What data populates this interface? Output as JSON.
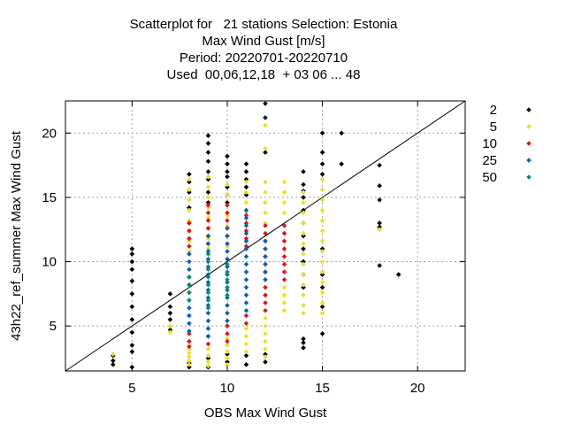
{
  "chart_data": {
    "type": "scatter",
    "title_lines": [
      "Scatterplot for   21 stations Selection: Estonia",
      "Max Wind Gust [m/s]",
      "Period: 20220701-20220710",
      "Used  00,06,12,18  + 03 06 ... 48"
    ],
    "xlabel": "OBS Max Wind Gust",
    "ylabel": "43h22_ref_summer Max Wind Gust",
    "xlim": [
      1.5,
      22.5
    ],
    "ylim": [
      1.5,
      22.5
    ],
    "xticks": [
      5,
      10,
      15,
      20
    ],
    "yticks": [
      5,
      10,
      15,
      20
    ],
    "grid": true,
    "legend_position": "right",
    "diagonal": true,
    "series": [
      {
        "name": "2",
        "color": "#000000",
        "points": [
          [
            4,
            2.7
          ],
          [
            4,
            2.3
          ],
          [
            4,
            2.0
          ],
          [
            5,
            11.0
          ],
          [
            5,
            10.6
          ],
          [
            5,
            10.0
          ],
          [
            5,
            9.4
          ],
          [
            5,
            8.5
          ],
          [
            5,
            7.5
          ],
          [
            5,
            6.5
          ],
          [
            5,
            5.5
          ],
          [
            5,
            4.5
          ],
          [
            5,
            3.5
          ],
          [
            5,
            3.0
          ],
          [
            5,
            1.8
          ],
          [
            7,
            7.5
          ],
          [
            7,
            6.5
          ],
          [
            7,
            6.0
          ],
          [
            7,
            5.5
          ],
          [
            7,
            4.7
          ],
          [
            8,
            16.8
          ],
          [
            8,
            16.2
          ],
          [
            8,
            15.4
          ],
          [
            8,
            14.2
          ],
          [
            8,
            13.0
          ],
          [
            8,
            2.1
          ],
          [
            8,
            1.8
          ],
          [
            9,
            19.8
          ],
          [
            9,
            19.2
          ],
          [
            9,
            18.5
          ],
          [
            9,
            17.8
          ],
          [
            9,
            17.0
          ],
          [
            9,
            16.4
          ],
          [
            9,
            15.4
          ],
          [
            9,
            14.6
          ],
          [
            9,
            2.5
          ],
          [
            9,
            1.8
          ],
          [
            10,
            18.2
          ],
          [
            10,
            17.6
          ],
          [
            10,
            17.0
          ],
          [
            10,
            16.6
          ],
          [
            10,
            15.8
          ],
          [
            10,
            15.2
          ],
          [
            10,
            14.6
          ],
          [
            10,
            2.8
          ],
          [
            10,
            2.2
          ],
          [
            11,
            17.6
          ],
          [
            11,
            17.0
          ],
          [
            11,
            16.4
          ],
          [
            11,
            15.8
          ],
          [
            11,
            15.2
          ],
          [
            11,
            2.7
          ],
          [
            11,
            2.0
          ],
          [
            12,
            22.3
          ],
          [
            12,
            21.2
          ],
          [
            12,
            18.5
          ],
          [
            12,
            2.8
          ],
          [
            12,
            2.2
          ],
          [
            14,
            17.0
          ],
          [
            14,
            16.0
          ],
          [
            14,
            15.5
          ],
          [
            14,
            15.0
          ],
          [
            14,
            14.0
          ],
          [
            14,
            13.0
          ],
          [
            14,
            12.0
          ],
          [
            14,
            11.0
          ],
          [
            14,
            10.0
          ],
          [
            14,
            9.0
          ],
          [
            14,
            8.0
          ],
          [
            14,
            4.0
          ],
          [
            14,
            3.7
          ],
          [
            14,
            3.3
          ],
          [
            15,
            20.0
          ],
          [
            15,
            18.5
          ],
          [
            15,
            17.6
          ],
          [
            15,
            16.8
          ],
          [
            15,
            11.0
          ],
          [
            15,
            9.0
          ],
          [
            15,
            8.0
          ],
          [
            15,
            6.5
          ],
          [
            15,
            4.4
          ],
          [
            16,
            20.0
          ],
          [
            16,
            17.6
          ],
          [
            18,
            17.5
          ],
          [
            18,
            15.9
          ],
          [
            18,
            14.8
          ],
          [
            18,
            13.0
          ],
          [
            18,
            12.7
          ],
          [
            18,
            9.7
          ],
          [
            19,
            9.0
          ]
        ]
      },
      {
        "name": "5",
        "color": "#e8e030",
        "points": [
          [
            4,
            2.8
          ],
          [
            7,
            5.0
          ],
          [
            7,
            4.5
          ],
          [
            8,
            16.4
          ],
          [
            8,
            15.6
          ],
          [
            8,
            14.8
          ],
          [
            8,
            14.0
          ],
          [
            8,
            13.2
          ],
          [
            8,
            12.4
          ],
          [
            8,
            11.6
          ],
          [
            8,
            10.8
          ],
          [
            8,
            3.2
          ],
          [
            8,
            2.9
          ],
          [
            8,
            2.6
          ],
          [
            8,
            2.3
          ],
          [
            8,
            2.0
          ],
          [
            9,
            16.6
          ],
          [
            9,
            15.8
          ],
          [
            9,
            15.0
          ],
          [
            9,
            14.2
          ],
          [
            9,
            13.4
          ],
          [
            9,
            12.6
          ],
          [
            9,
            11.8
          ],
          [
            9,
            11.0
          ],
          [
            9,
            3.2
          ],
          [
            9,
            2.7
          ],
          [
            9,
            2.2
          ],
          [
            9,
            1.9
          ],
          [
            10,
            16.0
          ],
          [
            10,
            15.2
          ],
          [
            10,
            14.4
          ],
          [
            10,
            13.6
          ],
          [
            10,
            12.8
          ],
          [
            10,
            12.0
          ],
          [
            10,
            11.2
          ],
          [
            10,
            4.0
          ],
          [
            10,
            3.5
          ],
          [
            10,
            3.0
          ],
          [
            10,
            2.5
          ],
          [
            10,
            2.0
          ],
          [
            11,
            16.2
          ],
          [
            11,
            15.4
          ],
          [
            11,
            14.6
          ],
          [
            11,
            13.8
          ],
          [
            11,
            13.0
          ],
          [
            11,
            12.2
          ],
          [
            11,
            4.8
          ],
          [
            11,
            4.2
          ],
          [
            11,
            3.6
          ],
          [
            11,
            3.0
          ],
          [
            12,
            20.6
          ],
          [
            12,
            18.8
          ],
          [
            12,
            16.2
          ],
          [
            12,
            15.4
          ],
          [
            12,
            14.6
          ],
          [
            12,
            13.8
          ],
          [
            12,
            13.0
          ],
          [
            12,
            5.6
          ],
          [
            12,
            5.0
          ],
          [
            12,
            4.4
          ],
          [
            12,
            3.8
          ],
          [
            12,
            3.2
          ],
          [
            12,
            2.6
          ],
          [
            13,
            16.2
          ],
          [
            13,
            15.4
          ],
          [
            13,
            14.6
          ],
          [
            13,
            13.8
          ],
          [
            13,
            8.0
          ],
          [
            13,
            7.4
          ],
          [
            13,
            6.8
          ],
          [
            13,
            6.2
          ],
          [
            14,
            15.4
          ],
          [
            14,
            14.6
          ],
          [
            14,
            13.8
          ],
          [
            14,
            13.0
          ],
          [
            14,
            12.2
          ],
          [
            14,
            11.4
          ],
          [
            14,
            10.6
          ],
          [
            14,
            9.8
          ],
          [
            14,
            9.0
          ],
          [
            14,
            8.2
          ],
          [
            14,
            7.4
          ],
          [
            14,
            6.6
          ],
          [
            14,
            6.0
          ],
          [
            15,
            16.4
          ],
          [
            15,
            15.6
          ],
          [
            15,
            14.8
          ],
          [
            15,
            14.0
          ],
          [
            15,
            13.2
          ],
          [
            15,
            12.4
          ],
          [
            15,
            11.6
          ],
          [
            15,
            10.8
          ],
          [
            15,
            10.0
          ],
          [
            15,
            9.2
          ],
          [
            15,
            8.4
          ],
          [
            15,
            7.6
          ],
          [
            15,
            6.8
          ],
          [
            15,
            6.0
          ],
          [
            18,
            12.5
          ]
        ]
      },
      {
        "name": "10",
        "color": "#d81818",
        "points": [
          [
            8,
            13.0
          ],
          [
            8,
            12.4
          ],
          [
            8,
            11.8
          ],
          [
            8,
            11.2
          ],
          [
            8,
            10.6
          ],
          [
            8,
            4.4
          ],
          [
            8,
            3.8
          ],
          [
            8,
            3.4
          ],
          [
            9,
            14.4
          ],
          [
            9,
            13.8
          ],
          [
            9,
            13.2
          ],
          [
            9,
            12.6
          ],
          [
            9,
            12.0
          ],
          [
            9,
            11.4
          ],
          [
            9,
            4.2
          ],
          [
            9,
            3.6
          ],
          [
            10,
            14.4
          ],
          [
            10,
            13.8
          ],
          [
            10,
            13.2
          ],
          [
            10,
            12.6
          ],
          [
            10,
            12.0
          ],
          [
            10,
            5.0
          ],
          [
            10,
            4.4
          ],
          [
            10,
            3.8
          ],
          [
            11,
            13.6
          ],
          [
            11,
            13.0
          ],
          [
            11,
            12.4
          ],
          [
            11,
            11.8
          ],
          [
            11,
            11.2
          ],
          [
            11,
            5.8
          ],
          [
            11,
            5.2
          ],
          [
            12,
            12.8
          ],
          [
            12,
            12.2
          ],
          [
            12,
            11.6
          ],
          [
            12,
            11.0
          ],
          [
            12,
            10.4
          ],
          [
            12,
            9.8
          ],
          [
            12,
            9.2
          ],
          [
            12,
            8.6
          ],
          [
            12,
            8.0
          ],
          [
            12,
            7.4
          ],
          [
            12,
            6.8
          ],
          [
            12,
            6.2
          ],
          [
            13,
            12.8
          ],
          [
            13,
            12.2
          ],
          [
            13,
            11.6
          ],
          [
            13,
            11.0
          ],
          [
            13,
            10.4
          ],
          [
            13,
            9.8
          ],
          [
            13,
            9.2
          ],
          [
            13,
            8.6
          ]
        ]
      },
      {
        "name": "25",
        "color": "#1060b0",
        "points": [
          [
            8,
            10.6
          ],
          [
            8,
            10.0
          ],
          [
            8,
            9.4
          ],
          [
            8,
            8.8
          ],
          [
            8,
            8.2
          ],
          [
            8,
            7.6
          ],
          [
            8,
            7.0
          ],
          [
            8,
            6.4
          ],
          [
            8,
            5.8
          ],
          [
            8,
            5.2
          ],
          [
            8,
            4.6
          ],
          [
            9,
            12.0
          ],
          [
            9,
            11.4
          ],
          [
            9,
            10.8
          ],
          [
            9,
            10.2
          ],
          [
            9,
            9.6
          ],
          [
            9,
            9.0
          ],
          [
            9,
            8.4
          ],
          [
            9,
            7.8
          ],
          [
            9,
            7.2
          ],
          [
            9,
            6.6
          ],
          [
            9,
            6.0
          ],
          [
            9,
            5.4
          ],
          [
            9,
            4.8
          ],
          [
            9,
            4.2
          ],
          [
            10,
            12.6
          ],
          [
            10,
            12.0
          ],
          [
            10,
            11.4
          ],
          [
            10,
            10.8
          ],
          [
            10,
            10.2
          ],
          [
            10,
            9.6
          ],
          [
            10,
            9.0
          ],
          [
            10,
            8.4
          ],
          [
            10,
            7.8
          ],
          [
            10,
            7.2
          ],
          [
            10,
            6.6
          ],
          [
            10,
            6.0
          ],
          [
            10,
            5.4
          ],
          [
            11,
            14.0
          ],
          [
            11,
            13.4
          ],
          [
            11,
            12.8
          ],
          [
            11,
            12.2
          ],
          [
            11,
            11.6
          ],
          [
            11,
            11.0
          ],
          [
            11,
            10.4
          ],
          [
            11,
            9.8
          ],
          [
            11,
            9.2
          ],
          [
            11,
            8.6
          ],
          [
            11,
            8.0
          ],
          [
            11,
            7.4
          ],
          [
            11,
            6.8
          ],
          [
            11,
            6.2
          ],
          [
            12,
            11.6
          ],
          [
            12,
            11.0
          ],
          [
            12,
            10.4
          ],
          [
            12,
            9.8
          ],
          [
            12,
            9.2
          ],
          [
            12,
            8.6
          ]
        ]
      },
      {
        "name": "50",
        "color": "#00906a",
        "points": [
          [
            8,
            8.8
          ],
          [
            8,
            8.2
          ],
          [
            8,
            7.6
          ],
          [
            8,
            7.0
          ],
          [
            9,
            10.6
          ],
          [
            9,
            10.0
          ],
          [
            9,
            9.4
          ],
          [
            9,
            8.8
          ],
          [
            9,
            8.2
          ],
          [
            9,
            7.6
          ],
          [
            9,
            7.0
          ],
          [
            9,
            6.4
          ],
          [
            10,
            9.8
          ],
          [
            10,
            9.2
          ],
          [
            10,
            8.6
          ],
          [
            10,
            8.0
          ],
          [
            10,
            7.4
          ]
        ]
      }
    ]
  }
}
